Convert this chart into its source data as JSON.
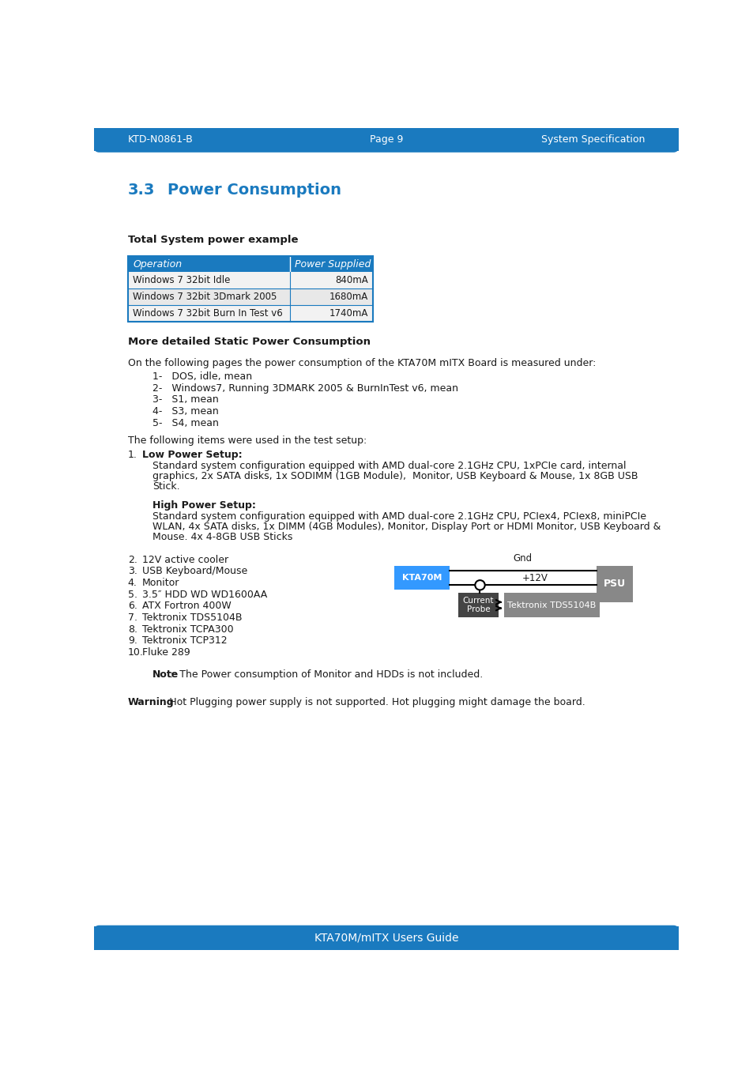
{
  "header_bg": "#1a7abf",
  "header_text_color": "#ffffff",
  "header_left": "KTD-N0861-B",
  "header_center": "Page 9",
  "header_right": "System Specification",
  "footer_bg": "#1a7abf",
  "footer_text": "KTA70M/mITX Users Guide",
  "footer_text_color": "#ffffff",
  "section_title_num": "3.3",
  "section_title_text": "Power Consumption",
  "section_title_color": "#1a7abf",
  "body_bg": "#ffffff",
  "table_header_bg": "#1a7abf",
  "table_header_text": "#ffffff",
  "table_row_bg1": "#f2f2f2",
  "table_row_bg2": "#e8e8e8",
  "table_border": "#1a7abf",
  "table_cols": [
    "Operation",
    "Power Supplied"
  ],
  "table_rows": [
    [
      "Windows 7 32bit Idle",
      "840mA"
    ],
    [
      "Windows 7 32bit 3Dmark 2005",
      "1680mA"
    ],
    [
      "Windows 7 32bit Burn In Test v6",
      "1740mA"
    ]
  ],
  "bold_heading1": "Total System power example",
  "bold_heading2": "More detailed Static Power Consumption",
  "body_text1": "On the following pages the power consumption of the KTA70M mITX Board is measured under:",
  "list_items": [
    "1-   DOS, idle, mean",
    "2-   Windows7, Running 3DMARK 2005 & BurnInTest v6, mean",
    "3-   S1, mean",
    "4-   S3, mean",
    "5-   S4, mean"
  ],
  "body_text2": "The following items were used in the test setup:",
  "low_power_label": "Low Power Setup:",
  "low_power_lines": [
    "Standard system configuration equipped with AMD dual-core 2.1GHz CPU, 1xPCIe card, internal",
    "graphics, 2x SATA disks, 1x SODIMM (1GB Module),  Monitor, USB Keyboard & Mouse, 1x 8GB USB",
    "Stick."
  ],
  "high_power_label": "High Power Setup:",
  "high_power_lines": [
    "Standard system configuration equipped with AMD dual-core 2.1GHz CPU, PCIex4, PCIex8, miniPCIe",
    "WLAN, 4x SATA disks, 1x DIMM (4GB Modules), Monitor, Display Port or HDMI Monitor, USB Keyboard &",
    "Mouse. 4x 4-8GB USB Sticks"
  ],
  "items_2_10": [
    [
      "2.",
      "12V active cooler"
    ],
    [
      "3.",
      "USB Keyboard/Mouse"
    ],
    [
      "4.",
      "Monitor"
    ],
    [
      "5.",
      "3.5″ HDD WD WD1600AA"
    ],
    [
      "6.",
      "ATX Fortron 400W"
    ],
    [
      "7.",
      "Tektronix TDS5104B"
    ],
    [
      "8.",
      "Tektronix TCPA300"
    ],
    [
      "9.",
      "Tektronix TCP312"
    ],
    [
      "10.",
      "Fluke 289"
    ]
  ],
  "note_bold": "Note",
  "note_rest": ":  The Power consumption of Monitor and HDDs is not included.",
  "warning_bold": "Warning",
  "warning_rest": ": Hot Plugging power supply is not supported. Hot plugging might damage the board.",
  "diagram_kta70m_bg": "#3399ff",
  "diagram_psu_bg": "#888888",
  "diagram_probe_bg": "#444444",
  "diagram_tek_bg": "#888888",
  "text_color": "#1a1a1a"
}
